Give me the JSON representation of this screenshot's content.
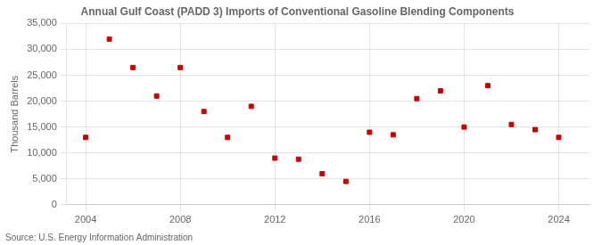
{
  "chart_data": {
    "type": "scatter",
    "title": "Annual Gulf Coast (PADD 3) Imports of Conventional Gasoline Blending Components",
    "ylabel": "Thousand Barrels",
    "annotations": [
      "Source: U.S. Energy Information Administration"
    ],
    "x": [
      2004,
      2005,
      2006,
      2007,
      2008,
      2009,
      2010,
      2011,
      2012,
      2013,
      2014,
      2015,
      2016,
      2017,
      2018,
      2019,
      2020,
      2021,
      2022,
      2023,
      2024
    ],
    "values": [
      13000,
      32000,
      26500,
      21000,
      26500,
      18000,
      13000,
      19000,
      9000,
      8800,
      6000,
      4500,
      14000,
      13500,
      20500,
      22000,
      15000,
      23000,
      15500,
      14500,
      13000
    ],
    "color": "#cc0000",
    "marker": "square",
    "xlim": [
      2003.2,
      2025.3
    ],
    "xticks": [
      2004,
      2008,
      2012,
      2016,
      2020,
      2024
    ],
    "ylim": [
      0,
      35000
    ],
    "yticks": [
      0,
      {
        "value": 5000,
        "label": "5,000"
      },
      {
        "value": 10000,
        "label": "10,000"
      },
      {
        "value": 15000,
        "label": "15,000"
      },
      {
        "value": 20000,
        "label": "20,000"
      },
      {
        "value": 25000,
        "label": "25,000"
      },
      {
        "value": 30000,
        "label": "30,000"
      },
      {
        "value": 35000,
        "label": "35,000"
      }
    ],
    "grid": true
  }
}
